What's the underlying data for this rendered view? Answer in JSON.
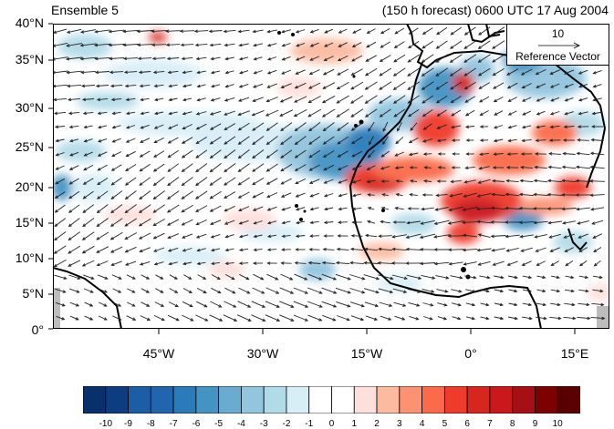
{
  "title_left": "Ensemble 5",
  "title_right": "(150 h forecast) 0600 UTC 17 Aug 2004",
  "y_ticks": [
    "40°N",
    "35°N",
    "30°N",
    "25°N",
    "20°N",
    "15°N",
    "10°N",
    "5°N",
    "0°"
  ],
  "x_ticks": [
    "45°W",
    "30°W",
    "15°W",
    "0°",
    "15°E"
  ],
  "reference_vector": {
    "magnitude": "10",
    "label": "Reference Vector"
  },
  "colorbar": {
    "labels": [
      "-10",
      "-9",
      "-8",
      "-7",
      "-6",
      "-5",
      "-4",
      "-3",
      "-2",
      "-1",
      "0",
      "1",
      "2",
      "3",
      "4",
      "5",
      "6",
      "7",
      "8",
      "9",
      "10"
    ],
    "colors": [
      "#08306b",
      "#0b3d80",
      "#1c5ea6",
      "#2166ac",
      "#2b7bba",
      "#4393c3",
      "#6aabd2",
      "#92c5de",
      "#b2dbe8",
      "#d8eef7",
      "#ffffff",
      "#ffffff",
      "#fde0dc",
      "#fcbba1",
      "#fc9272",
      "#fb6a4a",
      "#ef3b2c",
      "#d7261e",
      "#cb181d",
      "#a50f15",
      "#7f0000",
      "#5a0000"
    ]
  },
  "colors": {
    "land_outline": "#000000",
    "missing": "#bdbdbd"
  }
}
